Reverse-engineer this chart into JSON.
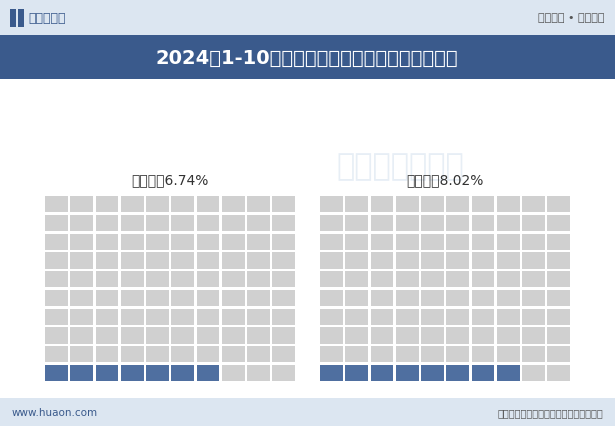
{
  "title": "2024年1-10月江苏福彩及体彩销售额占全国比重",
  "title_bg_color": "#3a5a8c",
  "title_text_color": "#ffffff",
  "background_color": "#ffffff",
  "header_bg_color": "#dce6f1",
  "charts": [
    {
      "label": "福利彩票6.74%",
      "percent": 6.74,
      "filled_count": 7,
      "filled_color": "#4f6fa0",
      "empty_color": "#d0d0d0"
    },
    {
      "label": "体育彩票8.02%",
      "percent": 8.02,
      "filled_count": 8,
      "filled_color": "#4f6fa0",
      "empty_color": "#d0d0d0"
    }
  ],
  "grid_rows": 10,
  "grid_cols": 10,
  "footer_text": "数据来源：财政部；华经产业研究院整理",
  "footer_left": "www.huaon.com",
  "watermark": "华经产业研究院",
  "top_left_logo": "华经情报网",
  "top_right_text": "专业严谨 • 客观科学"
}
